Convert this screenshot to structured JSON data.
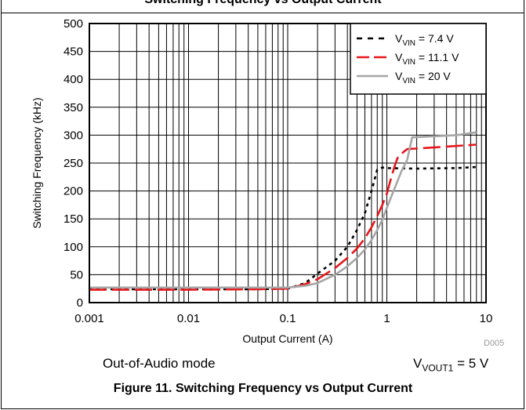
{
  "header": {
    "title": "Switching Frequency vs Output Current"
  },
  "chart_data": {
    "type": "line",
    "xlabel": "Output Current (A)",
    "ylabel": "Switching Frequency (kHz)",
    "xscale": "log",
    "xlim": [
      0.001,
      10
    ],
    "ylim": [
      0,
      500
    ],
    "x_ticks": [
      "0.001",
      "0.01",
      "0.1",
      "1",
      "10"
    ],
    "y_ticks": [
      "0",
      "50",
      "100",
      "150",
      "200",
      "250",
      "300",
      "350",
      "400",
      "450",
      "500"
    ],
    "grid": true,
    "legend_position": "top-right",
    "series": [
      {
        "name": "V_VIN = 7.4 V",
        "legend_main": "V",
        "legend_sub": "VIN",
        "legend_rest": " = 7.4 V",
        "color": "#000000",
        "dash": "4,5",
        "x": [
          0.001,
          0.01,
          0.05,
          0.1,
          0.15,
          0.2,
          0.3,
          0.4,
          0.5,
          0.6,
          0.7,
          0.8,
          0.9,
          1,
          2,
          5,
          8
        ],
        "y": [
          24,
          24,
          24,
          25,
          35,
          52,
          75,
          100,
          130,
          160,
          200,
          238,
          242,
          241,
          240,
          241,
          243
        ]
      },
      {
        "name": "V_VIN = 11.1 V",
        "legend_main": "V",
        "legend_sub": "VIN",
        "legend_rest": " = 11.1 V",
        "color": "#e8161b",
        "dash": "22,7",
        "x": [
          0.001,
          0.01,
          0.05,
          0.1,
          0.15,
          0.2,
          0.3,
          0.4,
          0.5,
          0.6,
          0.7,
          0.8,
          0.9,
          1,
          1.1,
          1.2,
          1.3,
          1.6,
          3,
          8
        ],
        "y": [
          23,
          23,
          24,
          25,
          33,
          42,
          62,
          80,
          97,
          115,
          135,
          155,
          175,
          195,
          222,
          245,
          262,
          275,
          278,
          283
        ]
      },
      {
        "name": "V_VIN = 20 V",
        "legend_main": "V",
        "legend_sub": "VIN",
        "legend_rest": " = 20 V",
        "color": "#a6a6a6",
        "dash": "",
        "x": [
          0.001,
          0.01,
          0.05,
          0.1,
          0.15,
          0.2,
          0.3,
          0.4,
          0.5,
          0.6,
          0.7,
          0.8,
          0.9,
          1,
          1.2,
          1.4,
          1.6,
          1.8,
          3,
          5,
          8
        ],
        "y": [
          27,
          27,
          27,
          27,
          30,
          35,
          50,
          65,
          80,
          95,
          112,
          130,
          148,
          170,
          205,
          235,
          255,
          296,
          298,
          300,
          305
        ]
      }
    ]
  },
  "footer": {
    "mode_label": "Out-of-Audio mode",
    "vout_main": "V",
    "vout_sub": "VOUT1",
    "vout_rest": " = 5 V",
    "code": "D005"
  },
  "caption": "Figure 11. Switching Frequency vs Output Current"
}
